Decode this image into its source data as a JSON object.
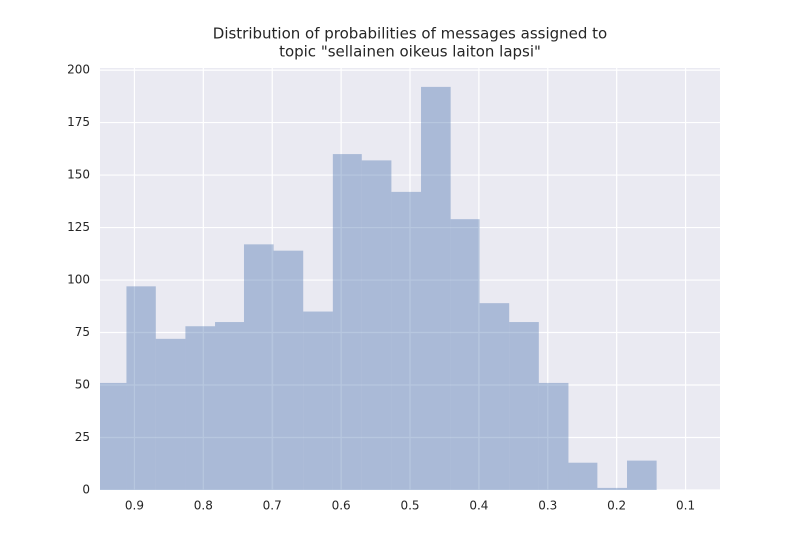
{
  "chart_data": {
    "type": "histogram",
    "title": [
      "Distribution of probabilities of messages assigned to",
      "topic \"sellainen oikeus laiton lapsi\""
    ],
    "bins": [
      0.954,
      0.9116,
      0.869,
      0.826,
      0.783,
      0.741,
      0.698,
      0.655,
      0.612,
      0.57,
      0.527,
      0.484,
      0.441,
      0.399,
      0.356,
      0.313,
      0.27,
      0.228,
      0.185,
      0.142
    ],
    "counts": [
      51,
      97,
      72,
      78,
      80,
      117,
      114,
      85,
      160,
      157,
      142,
      192,
      129,
      89,
      80,
      51,
      13,
      1,
      14
    ],
    "color": "#4c72b0",
    "opacity": 0.4,
    "background": "#eaeaf2",
    "grid": true,
    "xlim": [
      0.95,
      0.05
    ],
    "xticks": [
      0.9,
      0.8,
      0.7,
      0.6,
      0.5,
      0.4,
      0.3,
      0.2,
      0.1
    ],
    "ylim": [
      0,
      201
    ],
    "yticks": [
      0,
      25,
      50,
      75,
      100,
      125,
      150,
      175,
      200
    ]
  }
}
